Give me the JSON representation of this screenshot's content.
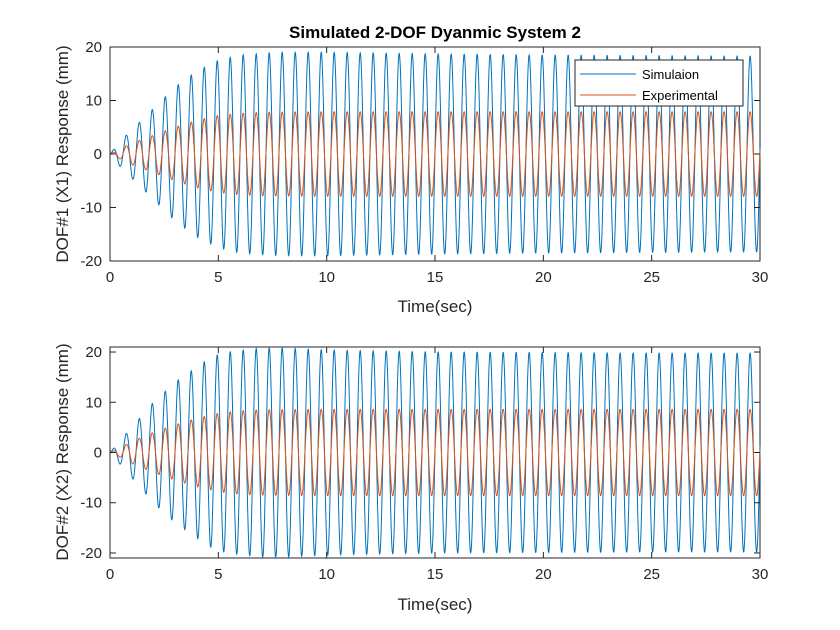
{
  "chart_data": [
    {
      "type": "line",
      "title": "Simulated 2-DOF Dyanmic System 2",
      "xlabel": "Time(sec)",
      "ylabel": "DOF#1 (X1) Response (mm)",
      "xlim": [
        0,
        30
      ],
      "ylim": [
        -20,
        20
      ],
      "xticks": [
        0,
        5,
        10,
        15,
        20,
        25,
        30
      ],
      "yticks": [
        -20,
        -10,
        0,
        10,
        20
      ],
      "grid": false,
      "legend": "top-right",
      "series": [
        {
          "name": "Simulaion",
          "color": "#0072BD",
          "frequency_hz": 1.667,
          "envelope": {
            "t": [
              0,
              0.5,
              1,
              1.5,
              2,
              2.5,
              3,
              3.5,
              4,
              4.5,
              5,
              5.5,
              6,
              7,
              8,
              9,
              10,
              15,
              20,
              25,
              30
            ],
            "amp": [
              0,
              2.5,
              4.5,
              6.5,
              8.5,
              10.5,
              12.5,
              14,
              15.5,
              16.5,
              17.5,
              18,
              18.5,
              18.8,
              19,
              19,
              19,
              18.7,
              18.5,
              18.4,
              18.3
            ]
          }
        },
        {
          "name": "Experimental",
          "color": "#D95319",
          "frequency_hz": 1.667,
          "envelope": {
            "t": [
              0,
              0.5,
              1,
              2,
              3,
              4,
              5,
              6,
              7,
              10,
              15,
              20,
              25,
              30
            ],
            "amp": [
              0,
              1,
              2,
              3.5,
              5,
              6.3,
              7.2,
              7.6,
              7.8,
              7.9,
              7.9,
              7.9,
              7.9,
              7.9
            ]
          }
        }
      ]
    },
    {
      "type": "line",
      "title": "",
      "xlabel": "Time(sec)",
      "ylabel": "DOF#2 (X2) Response (mm)",
      "xlim": [
        0,
        30
      ],
      "ylim": [
        -21,
        21
      ],
      "xticks": [
        0,
        5,
        10,
        15,
        20,
        25,
        30
      ],
      "yticks": [
        -20,
        -10,
        0,
        10,
        20
      ],
      "grid": false,
      "series": [
        {
          "name": "Simulaion",
          "color": "#0072BD",
          "frequency_hz": 1.667,
          "envelope": {
            "t": [
              0,
              0.5,
              1,
              1.5,
              2,
              2.5,
              3,
              3.5,
              4,
              4.5,
              5,
              5.5,
              6,
              7,
              8,
              9,
              10,
              15,
              20,
              25,
              30
            ],
            "amp": [
              0,
              2.5,
              5,
              7.5,
              10,
              12,
              14,
              15.5,
              17,
              18.5,
              19.5,
              20,
              20.3,
              20.8,
              20.8,
              20.6,
              20.4,
              20,
              19.9,
              19.8,
              19.8
            ]
          }
        },
        {
          "name": "Experimental",
          "color": "#D95319",
          "frequency_hz": 1.667,
          "envelope": {
            "t": [
              0,
              0.5,
              1,
              2,
              3,
              4,
              5,
              6,
              7,
              10,
              15,
              20,
              25,
              30
            ],
            "amp": [
              0,
              1,
              2.2,
              4,
              5.5,
              6.8,
              7.8,
              8.3,
              8.5,
              8.6,
              8.6,
              8.6,
              8.6,
              8.6
            ]
          }
        }
      ]
    }
  ]
}
